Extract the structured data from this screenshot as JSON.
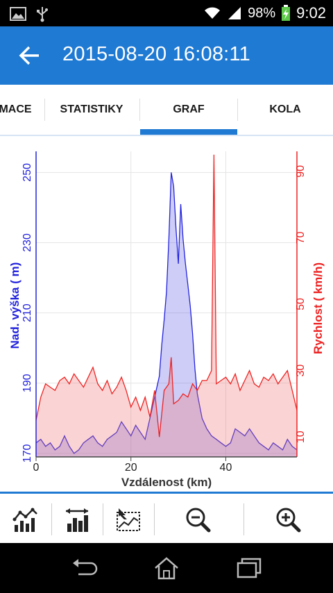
{
  "status_bar": {
    "battery_percent": "98%",
    "time": "9:02",
    "icons": [
      "image-notification-icon",
      "usb-icon",
      "wifi-icon",
      "signal-icon",
      "battery-charging-icon"
    ]
  },
  "app_bar": {
    "title": "2015-08-20 16:08:11",
    "back_icon": "arrow-left-icon"
  },
  "tabs": [
    {
      "label": "MACE",
      "active": false
    },
    {
      "label": "STATISTIKY",
      "active": false
    },
    {
      "label": "GRAF",
      "active": true
    },
    {
      "label": "KOLA",
      "active": false
    }
  ],
  "chart_data": {
    "type": "area",
    "xlabel": "Vzdálenost (km)",
    "ylabel_left": "Nad. výška ( m)",
    "ylabel_right": "Rychlost ( km/h)",
    "xlim": [
      0,
      55
    ],
    "ylim_left": [
      169,
      256
    ],
    "ylim_right": [
      4,
      96
    ],
    "x_ticks": [
      "0",
      "20",
      "40"
    ],
    "y_left_ticks": [
      "170",
      "190",
      "210",
      "230",
      "250"
    ],
    "y_right_ticks": [
      "10",
      "30",
      "50",
      "70",
      "90"
    ],
    "grid": true,
    "series": [
      {
        "name": "Nad. výška ( m)",
        "axis": "left",
        "color": "#2222dd",
        "x": [
          0,
          1,
          2,
          3,
          4,
          5,
          6,
          7,
          8,
          9,
          10,
          11,
          12,
          13,
          14,
          15,
          16,
          17,
          18,
          19,
          20,
          21,
          22,
          23,
          24,
          25,
          26,
          26.5,
          27,
          27.5,
          28,
          28.5,
          29,
          29.5,
          30,
          30.5,
          31,
          31.5,
          32,
          32.5,
          33,
          33.5,
          34,
          35,
          36,
          37,
          38,
          39,
          40,
          41,
          42,
          43,
          44,
          45,
          46,
          47,
          48,
          49,
          50,
          51,
          52,
          53,
          54,
          55
        ],
        "y": [
          173,
          174,
          172,
          173,
          171,
          172,
          175,
          172,
          170,
          171,
          173,
          174,
          175,
          173,
          172,
          174,
          175,
          176,
          179,
          177,
          175,
          178,
          176,
          174,
          180,
          186,
          192,
          201,
          208,
          216,
          231,
          250,
          246,
          234,
          224,
          241,
          231,
          224,
          218,
          212,
          204,
          194,
          187,
          180,
          177,
          175,
          174,
          173,
          172,
          173,
          177,
          176,
          175,
          177,
          175,
          173,
          172,
          171,
          173,
          172,
          171,
          174,
          172,
          171
        ]
      },
      {
        "name": "Rychlost ( km/h)",
        "axis": "right",
        "color": "#ee2222",
        "x": [
          0,
          1,
          2,
          3,
          4,
          5,
          6,
          7,
          8,
          9,
          10,
          11,
          12,
          13,
          14,
          15,
          16,
          17,
          18,
          19,
          20,
          21,
          22,
          23,
          24,
          25,
          26,
          27,
          28,
          28.5,
          29,
          30,
          31,
          32,
          33,
          34,
          35,
          36,
          37,
          37.5,
          38,
          39,
          40,
          41,
          42,
          43,
          44,
          45,
          46,
          47,
          48,
          49,
          50,
          51,
          52,
          53,
          54,
          55
        ],
        "y": [
          15,
          22,
          26,
          25,
          24,
          27,
          28,
          26,
          29,
          27,
          25,
          28,
          31,
          26,
          24,
          27,
          23,
          25,
          28,
          24,
          19,
          22,
          18,
          22,
          16,
          24,
          10,
          24,
          26,
          34,
          20,
          21,
          23,
          22,
          26,
          24,
          27,
          27,
          30,
          95,
          26,
          27,
          28,
          26,
          29,
          24,
          27,
          30,
          26,
          25,
          28,
          27,
          29,
          26,
          28,
          30,
          24,
          18
        ]
      }
    ]
  },
  "toolbar": {
    "tools": [
      {
        "name": "line-chart-tool",
        "icon": "line-chart-icon"
      },
      {
        "name": "bar-range-tool",
        "icon": "bar-range-icon"
      },
      {
        "name": "map-area-tool",
        "icon": "map-area-icon"
      },
      {
        "name": "zoom-out-tool",
        "icon": "zoom-out-icon"
      },
      {
        "name": "zoom-in-tool",
        "icon": "zoom-in-icon"
      }
    ]
  },
  "nav_bar": {
    "buttons": [
      "back-icon",
      "home-icon",
      "recents-icon"
    ]
  }
}
